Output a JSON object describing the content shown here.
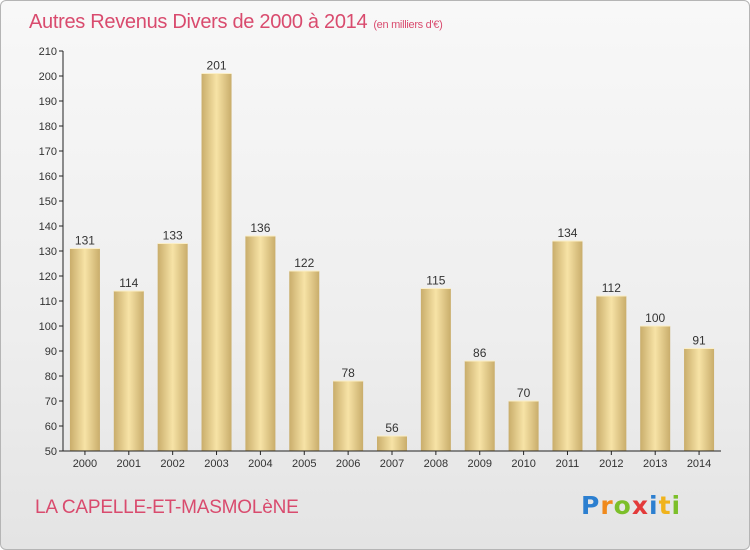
{
  "chart_data": {
    "type": "bar",
    "title": "Autres Revenus Divers de 2000 à 2014",
    "unit_label": "(en milliers d'€)",
    "categories": [
      "2000",
      "2001",
      "2002",
      "2003",
      "2004",
      "2005",
      "2006",
      "2007",
      "2008",
      "2009",
      "2010",
      "2011",
      "2012",
      "2013",
      "2014"
    ],
    "values": [
      131,
      114,
      133,
      201,
      136,
      122,
      78,
      56,
      115,
      86,
      70,
      134,
      112,
      100,
      91
    ],
    "ylim": [
      50,
      210
    ],
    "yticks": [
      50,
      60,
      70,
      80,
      90,
      100,
      110,
      120,
      130,
      140,
      150,
      160,
      170,
      180,
      190,
      200,
      210
    ],
    "grid": false,
    "legend": "none",
    "colors": {
      "bar_light": "#f7e3a6",
      "bar_dark": "#c9ad6b",
      "title": "#d94b6e",
      "axis": "#222222"
    }
  },
  "footer": {
    "commune": "LA CAPELLE-ET-MASMOLèNE",
    "logo_letters": [
      "P",
      "r",
      "o",
      "x",
      "i",
      "t",
      "i"
    ],
    "logo_colors": [
      "#2c7fd0",
      "#f08a1c",
      "#7cbf2a",
      "#e33a3a",
      "#2c7fd0",
      "#f0b31c",
      "#7cbf2a"
    ]
  }
}
